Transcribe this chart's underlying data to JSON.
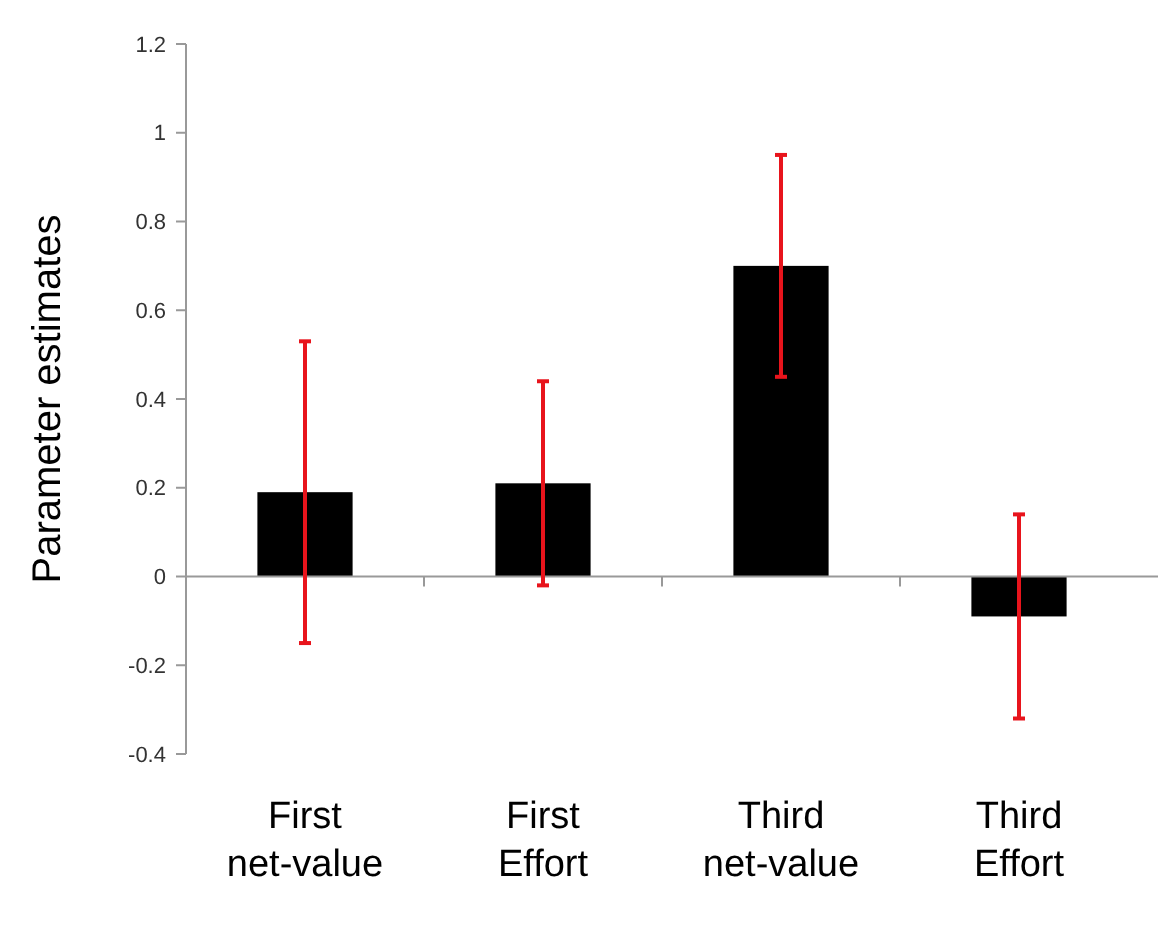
{
  "chart_data": {
    "type": "bar",
    "ylabel": "Parameter estimates",
    "categories": [
      "First net-value",
      "First Effort",
      "Third net-value",
      "Third Effort"
    ],
    "values": [
      0.19,
      0.21,
      0.7,
      -0.09
    ],
    "color": "#000000",
    "errors": [
      [
        -0.15,
        0.53
      ],
      [
        -0.02,
        0.44
      ],
      [
        0.45,
        0.95
      ],
      [
        -0.32,
        0.14
      ]
    ],
    "ylim": [
      -0.4,
      1.2
    ],
    "yticks": [
      -0.4,
      -0.2,
      0,
      0.2,
      0.4,
      0.6,
      0.8,
      1,
      1.2
    ]
  }
}
